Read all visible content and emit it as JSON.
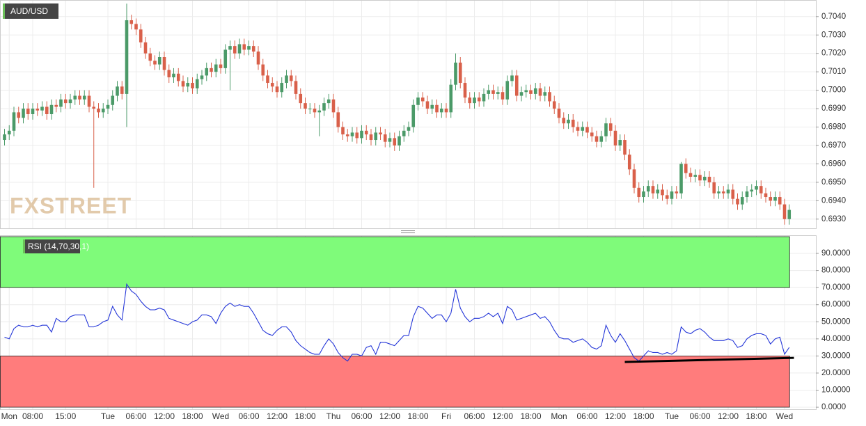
{
  "chart_data": [
    {
      "type": "candlestick",
      "title": "AUD/USD",
      "watermark": "FXSTREET",
      "up_color": "#4b9a68",
      "down_color": "#d9604a",
      "categories": [
        null,
        "Mon",
        null,
        null,
        null,
        null,
        "08:00",
        null,
        null,
        null,
        null,
        null,
        null,
        "15:00",
        null,
        null,
        null,
        null,
        null,
        null,
        null,
        null,
        "Tue",
        null,
        null,
        null,
        null,
        null,
        "06:00",
        null,
        null,
        null,
        null,
        null,
        "12:00",
        null,
        null,
        null,
        null,
        null,
        "18:00",
        null,
        null,
        null,
        null,
        null,
        "Wed",
        null,
        null,
        null,
        null,
        null,
        "06:00",
        null,
        null,
        null,
        null,
        null,
        "12:00",
        null,
        null,
        null,
        null,
        null,
        "18:00",
        null,
        null,
        null,
        null,
        null,
        "Thu",
        null,
        null,
        null,
        null,
        null,
        "06:00",
        null,
        null,
        null,
        null,
        null,
        "12:00",
        null,
        null,
        null,
        null,
        null,
        "18:00",
        null,
        null,
        null,
        null,
        null,
        "Fri",
        null,
        null,
        null,
        null,
        null,
        "06:00",
        null,
        null,
        null,
        null,
        null,
        "12:00",
        null,
        null,
        null,
        null,
        null,
        "18:00",
        null,
        null,
        null,
        null,
        null,
        "Mon",
        null,
        null,
        null,
        null,
        null,
        "06:00",
        null,
        null,
        null,
        null,
        null,
        "12:00",
        null,
        null,
        null,
        null,
        null,
        "18:00",
        null,
        null,
        null,
        null,
        null,
        "Tue",
        null,
        null,
        null,
        null,
        null,
        "06:00",
        null,
        null,
        null,
        null,
        null,
        "12:00",
        null,
        null,
        null,
        null,
        null,
        "18:00",
        null,
        null,
        null,
        null,
        null,
        "Wed",
        null
      ],
      "open": [
        0.6973,
        0.6976,
        0.6978,
        0.6988,
        0.6985,
        0.699,
        0.6987,
        0.699,
        0.6989,
        0.6991,
        0.6987,
        0.6992,
        0.6991,
        0.6995,
        0.6993,
        0.6995,
        0.6997,
        0.6995,
        0.6997,
        0.6991,
        0.699,
        0.6988,
        0.699,
        0.6992,
        0.6997,
        0.7002,
        0.6998,
        0.7038,
        0.7036,
        0.7033,
        0.7026,
        0.702,
        0.7016,
        0.7014,
        0.7018,
        0.7011,
        0.7007,
        0.7009,
        0.7005,
        0.7002,
        0.7004,
        0.7001,
        0.7006,
        0.7008,
        0.7012,
        0.701,
        0.7014,
        0.7012,
        0.7022,
        0.7024,
        0.702,
        0.7025,
        0.7022,
        0.7024,
        0.7021,
        0.7014,
        0.7008,
        0.7004,
        0.7002,
        0.6999,
        0.7004,
        0.7008,
        0.7005,
        0.6998,
        0.6993,
        0.699,
        0.699,
        0.6988,
        0.6989,
        0.6993,
        0.6995,
        0.6988,
        0.698,
        0.6976,
        0.6975,
        0.6977,
        0.6974,
        0.6978,
        0.6976,
        0.6973,
        0.6977,
        0.6976,
        0.6972,
        0.6974,
        0.697,
        0.6975,
        0.6978,
        0.698,
        0.6992,
        0.6996,
        0.6994,
        0.699,
        0.6992,
        0.6988,
        0.699,
        0.6988,
        0.7003,
        0.7015,
        0.7004,
        0.6996,
        0.6993,
        0.6996,
        0.6994,
        0.6998,
        0.7,
        0.6998,
        0.6999,
        0.6995,
        0.7005,
        0.7008,
        0.6997,
        0.6999,
        0.7,
        0.6998,
        0.7001,
        0.6997,
        0.6999,
        0.6994,
        0.699,
        0.6985,
        0.6982,
        0.6984,
        0.698,
        0.6978,
        0.698,
        0.6977,
        0.6975,
        0.6972,
        0.6975,
        0.6982,
        0.6978,
        0.697,
        0.6973,
        0.6965,
        0.6957,
        0.6947,
        0.6942,
        0.6945,
        0.6948,
        0.6944,
        0.6946,
        0.6943,
        0.6941,
        0.6945,
        0.6944,
        0.696,
        0.6955,
        0.6953,
        0.6954,
        0.6951,
        0.6953,
        0.695,
        0.6944,
        0.6945,
        0.6944,
        0.6946,
        0.6941,
        0.6938,
        0.6942,
        0.6945,
        0.6946,
        0.6948,
        0.6944,
        0.6942,
        0.694,
        0.6942,
        0.6938,
        0.693
      ],
      "high": [
        0.6979,
        0.6981,
        0.6991,
        0.6991,
        0.6993,
        0.6993,
        0.6993,
        0.6993,
        0.6994,
        0.6994,
        0.6995,
        0.6995,
        0.6998,
        0.6998,
        0.6998,
        0.7,
        0.7,
        0.7,
        0.7,
        0.6994,
        0.6993,
        0.6993,
        0.6995,
        0.7,
        0.7005,
        0.7005,
        0.7047,
        0.7041,
        0.7039,
        0.7036,
        0.7029,
        0.7023,
        0.7019,
        0.7021,
        0.7021,
        0.7014,
        0.7012,
        0.7012,
        0.7008,
        0.7007,
        0.7007,
        0.7009,
        0.7011,
        0.7015,
        0.7015,
        0.7017,
        0.7017,
        0.7025,
        0.7027,
        0.7027,
        0.7028,
        0.7028,
        0.7027,
        0.7027,
        0.7024,
        0.7017,
        0.7011,
        0.7007,
        0.7005,
        0.7007,
        0.7011,
        0.7011,
        0.7008,
        0.7001,
        0.6996,
        0.6993,
        0.6993,
        0.6992,
        0.6996,
        0.6998,
        0.6998,
        0.6991,
        0.6983,
        0.6979,
        0.698,
        0.698,
        0.6981,
        0.6981,
        0.6979,
        0.698,
        0.698,
        0.6979,
        0.6977,
        0.6977,
        0.6978,
        0.6981,
        0.6983,
        0.6995,
        0.6999,
        0.6999,
        0.6997,
        0.6995,
        0.6995,
        0.6993,
        0.6993,
        0.7006,
        0.702,
        0.7018,
        0.7007,
        0.6999,
        0.6999,
        0.6999,
        0.7001,
        0.7003,
        0.7003,
        0.7002,
        0.7002,
        0.7008,
        0.7011,
        0.7011,
        0.7002,
        0.7003,
        0.7003,
        0.7004,
        0.7004,
        0.7002,
        0.7002,
        0.6997,
        0.6993,
        0.6988,
        0.6987,
        0.6987,
        0.6983,
        0.6983,
        0.6983,
        0.698,
        0.6978,
        0.6978,
        0.6985,
        0.6985,
        0.6981,
        0.6976,
        0.6976,
        0.6968,
        0.696,
        0.695,
        0.6948,
        0.6951,
        0.6951,
        0.6949,
        0.6949,
        0.6946,
        0.6948,
        0.6948,
        0.6961,
        0.6963,
        0.6958,
        0.6957,
        0.6957,
        0.6956,
        0.6956,
        0.6953,
        0.6948,
        0.6948,
        0.6949,
        0.6949,
        0.6944,
        0.6945,
        0.6948,
        0.6949,
        0.6951,
        0.6951,
        0.6947,
        0.6945,
        0.6945,
        0.6945,
        0.6941,
        0.6938
      ],
      "low": [
        0.697,
        0.6973,
        0.6975,
        0.6982,
        0.6982,
        0.6984,
        0.6984,
        0.6986,
        0.6986,
        0.6984,
        0.6984,
        0.6988,
        0.6988,
        0.699,
        0.699,
        0.6992,
        0.6992,
        0.6992,
        0.6988,
        0.6947,
        0.6985,
        0.6985,
        0.6987,
        0.6989,
        0.6994,
        0.6995,
        0.698,
        0.7033,
        0.703,
        0.7023,
        0.7017,
        0.7013,
        0.7011,
        0.7011,
        0.7008,
        0.7004,
        0.7004,
        0.7002,
        0.6999,
        0.6999,
        0.6998,
        0.6998,
        0.7003,
        0.7005,
        0.7007,
        0.7007,
        0.7009,
        0.7009,
        0.7,
        0.7017,
        0.7017,
        0.7019,
        0.7019,
        0.7018,
        0.7011,
        0.7005,
        0.7001,
        0.6999,
        0.6996,
        0.6996,
        0.7001,
        0.7002,
        0.6995,
        0.699,
        0.6987,
        0.6987,
        0.6985,
        0.6975,
        0.6986,
        0.699,
        0.6985,
        0.6977,
        0.6973,
        0.6972,
        0.6972,
        0.6971,
        0.6971,
        0.6973,
        0.697,
        0.697,
        0.6973,
        0.6969,
        0.6969,
        0.6967,
        0.6967,
        0.6972,
        0.6975,
        0.6977,
        0.6989,
        0.6991,
        0.6987,
        0.6987,
        0.6985,
        0.6985,
        0.6985,
        0.6985,
        0.7,
        0.7001,
        0.6993,
        0.699,
        0.699,
        0.6991,
        0.6991,
        0.6995,
        0.6995,
        0.6995,
        0.6992,
        0.6992,
        0.7002,
        0.6994,
        0.6994,
        0.6996,
        0.6995,
        0.6995,
        0.6994,
        0.6994,
        0.6991,
        0.6987,
        0.6982,
        0.6979,
        0.6979,
        0.6977,
        0.6975,
        0.6975,
        0.6974,
        0.6972,
        0.6969,
        0.6969,
        0.6972,
        0.6975,
        0.6967,
        0.6967,
        0.6962,
        0.6954,
        0.6944,
        0.6939,
        0.6939,
        0.6942,
        0.6941,
        0.6941,
        0.694,
        0.6938,
        0.6938,
        0.6941,
        0.6941,
        0.6952,
        0.695,
        0.695,
        0.6948,
        0.6948,
        0.6947,
        0.6941,
        0.6941,
        0.6941,
        0.6941,
        0.6938,
        0.6935,
        0.6935,
        0.6939,
        0.6942,
        0.6943,
        0.6941,
        0.6939,
        0.6937,
        0.6937,
        0.6935,
        0.6927,
        0.6927
      ],
      "close": [
        0.6976,
        0.6978,
        0.6988,
        0.6985,
        0.699,
        0.6987,
        0.699,
        0.6989,
        0.6991,
        0.6987,
        0.6992,
        0.6991,
        0.6995,
        0.6993,
        0.6995,
        0.6997,
        0.6995,
        0.6997,
        0.6991,
        0.699,
        0.6988,
        0.699,
        0.6992,
        0.6997,
        0.7002,
        0.6998,
        0.7038,
        0.7036,
        0.7033,
        0.7026,
        0.702,
        0.7016,
        0.7014,
        0.7018,
        0.7011,
        0.7007,
        0.7009,
        0.7005,
        0.7002,
        0.7004,
        0.7001,
        0.7006,
        0.7008,
        0.7012,
        0.701,
        0.7014,
        0.7012,
        0.7022,
        0.7024,
        0.702,
        0.7025,
        0.7022,
        0.7024,
        0.7021,
        0.7014,
        0.7008,
        0.7004,
        0.7002,
        0.6999,
        0.7004,
        0.7008,
        0.7005,
        0.6998,
        0.6993,
        0.699,
        0.699,
        0.6988,
        0.6989,
        0.6993,
        0.6995,
        0.6988,
        0.698,
        0.6976,
        0.6975,
        0.6977,
        0.6974,
        0.6978,
        0.6976,
        0.6973,
        0.6977,
        0.6976,
        0.6972,
        0.6974,
        0.697,
        0.6975,
        0.6978,
        0.698,
        0.6992,
        0.6996,
        0.6994,
        0.699,
        0.6992,
        0.6988,
        0.699,
        0.6988,
        0.7003,
        0.7015,
        0.7004,
        0.6996,
        0.6993,
        0.6996,
        0.6994,
        0.6998,
        0.7,
        0.6998,
        0.6999,
        0.6995,
        0.7005,
        0.7008,
        0.6997,
        0.6999,
        0.7,
        0.6998,
        0.7001,
        0.6997,
        0.6999,
        0.6994,
        0.699,
        0.6985,
        0.6982,
        0.6984,
        0.698,
        0.6978,
        0.698,
        0.6977,
        0.6975,
        0.6972,
        0.6975,
        0.6982,
        0.6978,
        0.697,
        0.6973,
        0.6965,
        0.6957,
        0.6947,
        0.6942,
        0.6945,
        0.6948,
        0.6944,
        0.6946,
        0.6943,
        0.6941,
        0.6945,
        0.6944,
        0.696,
        0.6955,
        0.6953,
        0.6954,
        0.6951,
        0.6953,
        0.695,
        0.6944,
        0.6945,
        0.6944,
        0.6946,
        0.6941,
        0.6938,
        0.6942,
        0.6945,
        0.6946,
        0.6948,
        0.6944,
        0.6942,
        0.694,
        0.6942,
        0.6938,
        0.693,
        0.6935
      ],
      "ylim": [
        0.6925,
        0.7049
      ],
      "yticks": [
        {
          "value": 0.693,
          "label": "0.6930"
        },
        {
          "value": 0.694,
          "label": "0.6940"
        },
        {
          "value": 0.695,
          "label": "0.6950"
        },
        {
          "value": 0.696,
          "label": "0.6960"
        },
        {
          "value": 0.697,
          "label": "0.6970"
        },
        {
          "value": 0.698,
          "label": "0.6980"
        },
        {
          "value": 0.699,
          "label": "0.6990"
        },
        {
          "value": 0.7,
          "label": "0.7000"
        },
        {
          "value": 0.701,
          "label": "0.7010"
        },
        {
          "value": 0.702,
          "label": "0.7020"
        },
        {
          "value": 0.703,
          "label": "0.7030"
        },
        {
          "value": 0.704,
          "label": "0.7040"
        }
      ],
      "grid": true
    },
    {
      "type": "line",
      "title": "RSI (14,70,30,1)",
      "color": "#2436d8",
      "overbought": 70,
      "oversold": 30,
      "overbought_color": "#7ffb7a",
      "oversold_color": "#ff7c7c",
      "values": [
        41,
        40,
        46,
        48,
        47,
        47,
        48,
        47,
        48,
        48,
        44,
        52,
        50,
        50,
        53,
        54,
        54,
        54,
        47,
        47,
        48,
        50,
        51,
        59,
        54,
        51,
        72,
        68,
        66,
        62,
        59,
        57,
        57,
        58,
        57,
        52,
        51,
        50,
        49,
        48,
        50,
        51,
        54,
        54,
        53,
        49,
        55,
        59,
        61,
        59,
        60,
        59,
        59,
        55,
        50,
        45,
        43,
        42,
        45,
        47,
        47,
        44,
        39,
        36,
        34,
        32,
        31,
        31,
        36,
        40,
        37,
        32,
        29,
        27,
        31,
        31,
        30,
        35,
        36,
        31,
        38,
        38,
        37,
        36,
        39,
        42,
        42,
        53,
        59,
        58,
        55,
        52,
        54,
        54,
        50,
        55,
        69,
        58,
        53,
        50,
        52,
        52,
        53,
        55,
        53,
        55,
        49,
        59,
        57,
        51,
        52,
        53,
        54,
        55,
        52,
        53,
        50,
        45,
        41,
        40,
        40,
        38,
        39,
        40,
        38,
        35,
        34,
        36,
        48,
        42,
        38,
        43,
        39,
        34,
        29,
        27,
        30,
        33,
        32,
        32,
        31,
        32,
        31,
        33,
        47,
        44,
        43,
        45,
        46,
        44,
        41,
        39,
        39,
        39,
        40,
        39,
        35,
        36,
        40,
        42,
        43,
        43,
        42,
        37,
        40,
        41,
        31,
        35
      ],
      "trendline": {
        "start": [
          132,
          26.5
        ],
        "end": [
          168,
          28.9
        ]
      },
      "ylim": [
        -1.2,
        100.6
      ],
      "yticks": [
        {
          "value": 0,
          "label": "0.0000"
        },
        {
          "value": 10,
          "label": "10.0000"
        },
        {
          "value": 20,
          "label": "20.0000"
        },
        {
          "value": 30,
          "label": "30.0000"
        },
        {
          "value": 40,
          "label": "40.0000"
        },
        {
          "value": 50,
          "label": "50.0000"
        },
        {
          "value": 60,
          "label": "60.0000"
        },
        {
          "value": 70,
          "label": "70.0000"
        },
        {
          "value": 80,
          "label": "80.0000"
        },
        {
          "value": 90,
          "label": "90.0000"
        }
      ],
      "grid": true
    }
  ]
}
